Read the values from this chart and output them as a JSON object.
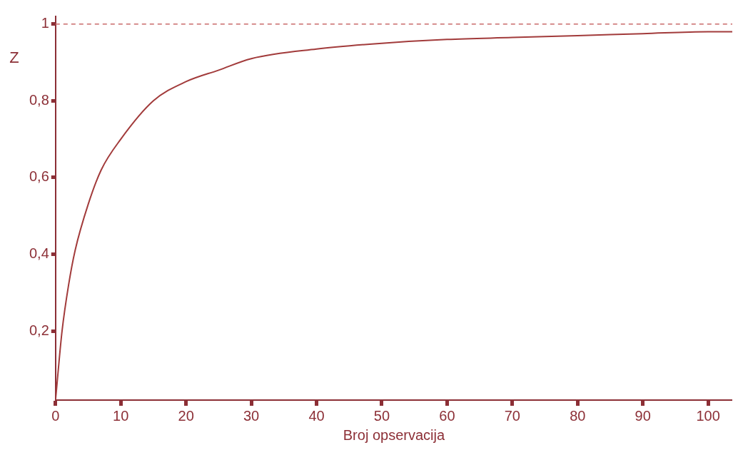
{
  "chart_data": {
    "type": "line",
    "xlabel": "Broj opservacija",
    "ylabel": "Z",
    "series": [
      {
        "color": "#a23b3b",
        "x": [
          0,
          1,
          2,
          3,
          5,
          7,
          10,
          15,
          20,
          25,
          30,
          40,
          50,
          60,
          70,
          80,
          90,
          100,
          103.7
        ],
        "values": [
          0.02,
          0.2,
          0.32,
          0.41,
          0.53,
          0.62,
          0.7,
          0.8,
          0.85,
          0.88,
          0.91,
          0.935,
          0.95,
          0.96,
          0.965,
          0.97,
          0.975,
          0.98,
          0.98
        ]
      }
    ],
    "xlim": [
      0,
      103.7
    ],
    "xticks": [
      0,
      10,
      20,
      30,
      40,
      50,
      60,
      70,
      80,
      90,
      100
    ],
    "ylim": [
      0.02,
      1.02
    ],
    "yticks": [
      {
        "value": 0.2,
        "label": "0,2"
      },
      {
        "value": 0.4,
        "label": "0,4"
      },
      {
        "value": 0.6,
        "label": "0,6"
      },
      {
        "value": 0.8,
        "label": "0,8"
      },
      1
    ],
    "ref_lines": [
      {
        "axis": "y",
        "value": 1,
        "color": "#c96a6a",
        "line_style": "dashed"
      }
    ],
    "grid": false,
    "legend": false,
    "marker": "none",
    "line_style": "solid"
  }
}
